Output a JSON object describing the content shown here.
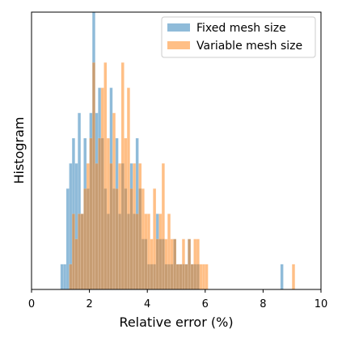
{
  "chart_data": {
    "type": "bar",
    "xlabel": "Relative error (%)",
    "ylabel": "Histogram",
    "xlim": [
      0,
      10
    ],
    "ylim": [
      0,
      11
    ],
    "xticks": [
      0,
      2,
      4,
      6,
      8,
      10
    ],
    "xtick_labels": [
      "0",
      "2",
      "4",
      "6",
      "8",
      "10"
    ],
    "grid": false,
    "legend": "top-right",
    "bin_width": 0.1,
    "series": [
      {
        "name": "Fixed mesh size",
        "color": "#1f77b4",
        "x": [
          1.05,
          1.15,
          1.25,
          1.35,
          1.45,
          1.55,
          1.65,
          1.75,
          1.85,
          1.95,
          2.05,
          2.15,
          2.25,
          2.35,
          2.45,
          2.55,
          2.65,
          2.75,
          2.85,
          2.95,
          3.05,
          3.15,
          3.25,
          3.35,
          3.45,
          3.55,
          3.65,
          3.75,
          3.85,
          3.95,
          4.05,
          4.15,
          4.25,
          4.35,
          4.45,
          4.55,
          4.65,
          4.75,
          4.85,
          4.95,
          5.05,
          5.15,
          5.25,
          5.35,
          5.45,
          5.55,
          5.65,
          5.75,
          8.65
        ],
        "values": [
          1,
          1,
          4,
          5,
          6,
          5,
          7,
          3,
          6,
          4,
          7,
          11,
          7,
          8,
          6,
          4,
          3,
          8,
          4,
          6,
          3,
          5,
          4,
          3,
          5,
          3,
          6,
          4,
          2,
          2,
          1,
          1,
          1,
          3,
          2,
          2,
          1,
          1,
          1,
          2,
          1,
          1,
          1,
          1,
          2,
          1,
          1,
          1,
          1
        ]
      },
      {
        "name": "Variable mesh size",
        "color": "#ff7f0e",
        "x": [
          1.35,
          1.45,
          1.55,
          1.65,
          1.75,
          1.85,
          1.95,
          2.05,
          2.15,
          2.25,
          2.35,
          2.45,
          2.55,
          2.65,
          2.75,
          2.85,
          2.95,
          3.05,
          3.15,
          3.25,
          3.35,
          3.45,
          3.55,
          3.65,
          3.75,
          3.85,
          3.95,
          4.05,
          4.15,
          4.25,
          4.35,
          4.45,
          4.55,
          4.65,
          4.75,
          4.85,
          4.95,
          5.05,
          5.15,
          5.25,
          5.35,
          5.45,
          5.55,
          5.65,
          5.75,
          5.85,
          5.95,
          6.05,
          9.05
        ],
        "values": [
          1,
          3,
          2,
          3,
          3,
          4,
          5,
          6,
          9,
          5,
          6,
          8,
          9,
          6,
          5,
          7,
          4,
          5,
          9,
          6,
          8,
          4,
          5,
          3,
          5,
          4,
          3,
          3,
          2,
          4,
          2,
          3,
          5,
          2,
          3,
          2,
          2,
          1,
          1,
          2,
          1,
          2,
          1,
          2,
          2,
          1,
          1,
          1,
          1
        ]
      }
    ]
  }
}
